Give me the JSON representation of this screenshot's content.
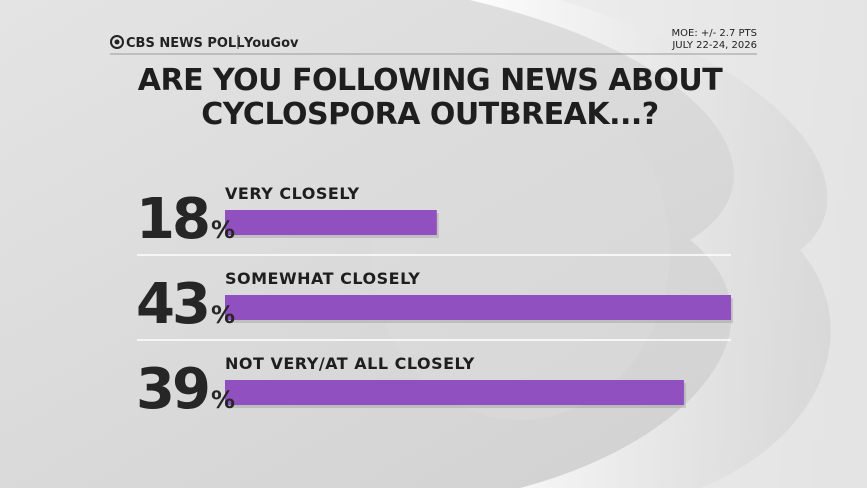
{
  "chart_data": {
    "type": "bar",
    "orientation": "horizontal",
    "brand": "CBS NEWS POLL",
    "partner": "YouGov",
    "moe": "MOE: +/- 2.7 PTS",
    "date": "JULY 22-24, 2026",
    "title": "ARE YOU FOLLOWING NEWS ABOUT CYCLOSPORA OUTBREAK...?",
    "categories": [
      "VERY CLOSELY",
      "SOMEWHAT CLOSELY",
      "NOT VERY/AT ALL CLOSELY"
    ],
    "values": [
      18,
      43,
      39
    ],
    "value_labels": [
      "18%",
      "43%",
      "39%"
    ],
    "color": "#9150c0"
  }
}
